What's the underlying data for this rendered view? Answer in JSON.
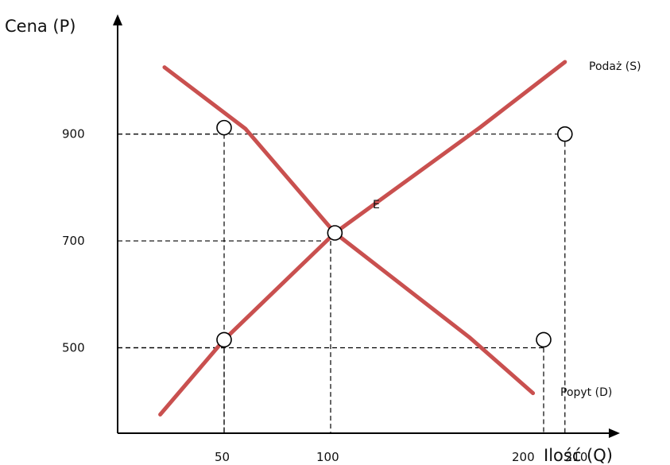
{
  "chart_data": {
    "type": "line",
    "xlabel": "Ilość (Q)",
    "ylabel": "Cena (P)",
    "x_ticks": [
      50,
      100,
      200,
      210
    ],
    "y_ticks": [
      500,
      700,
      900
    ],
    "xlim": [
      0,
      280
    ],
    "ylim": [
      340,
      1090
    ],
    "series": [
      {
        "name": "Podaż (S)",
        "color": "#c9504f",
        "points": [
          {
            "x": 20,
            "y": 375
          },
          {
            "x": 50,
            "y": 515
          },
          {
            "x": 102,
            "y": 715
          },
          {
            "x": 170,
            "y": 912
          },
          {
            "x": 210,
            "y": 1035
          }
        ]
      },
      {
        "name": "Popyt (D)",
        "color": "#c9504f",
        "points": [
          {
            "x": 22,
            "y": 1025
          },
          {
            "x": 60,
            "y": 910
          },
          {
            "x": 102,
            "y": 715
          },
          {
            "x": 165,
            "y": 520
          },
          {
            "x": 195,
            "y": 415
          }
        ]
      }
    ],
    "markers": [
      {
        "x": 50,
        "y": 912
      },
      {
        "x": 210,
        "y": 900
      },
      {
        "x": 102,
        "y": 715
      },
      {
        "x": 50,
        "y": 515
      },
      {
        "x": 200,
        "y": 515
      }
    ],
    "equilibrium": {
      "label": "E",
      "x": 102,
      "y": 715
    },
    "guides": [
      {
        "x": 50,
        "y": 900
      },
      {
        "x": 210,
        "y": 900
      },
      {
        "x": 100,
        "y": 700
      },
      {
        "x": 50,
        "y": 500
      },
      {
        "x": 200,
        "y": 500
      }
    ],
    "grid": false
  }
}
